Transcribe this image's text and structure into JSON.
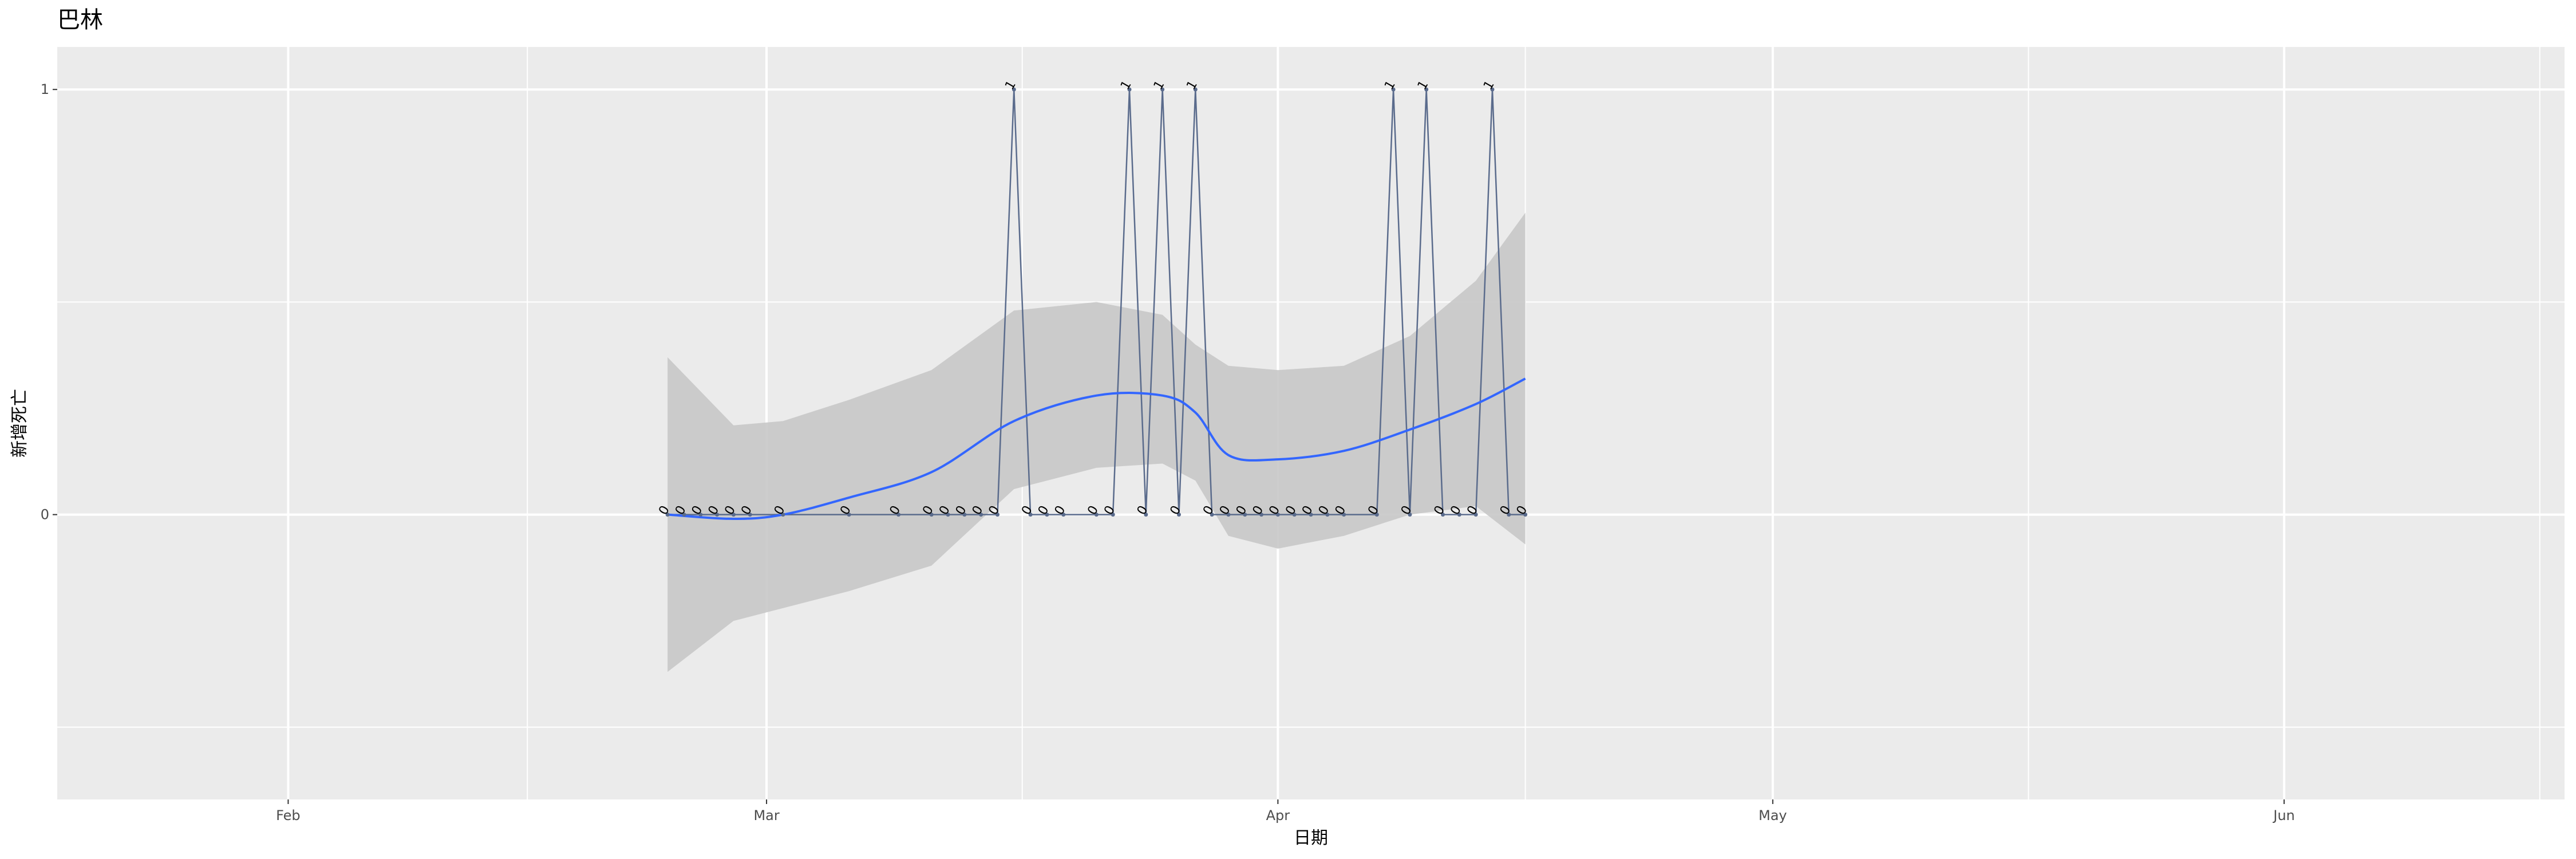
{
  "chart_data": {
    "type": "line",
    "title": "巴林",
    "xlabel": "日期",
    "ylabel": "新增死亡",
    "x_tick_labels": [
      {
        "label": "Feb",
        "date": "2020-02-01"
      },
      {
        "label": "Mar",
        "date": "2020-03-01"
      },
      {
        "label": "Apr",
        "date": "2020-04-01"
      },
      {
        "label": "May",
        "date": "2020-05-01"
      },
      {
        "label": "Jun",
        "date": "2020-06-01"
      }
    ],
    "y_ticks": [
      0,
      1
    ],
    "xlim": [
      "2020-01-18",
      "2020-06-18"
    ],
    "ylim": [
      -0.67,
      1.1
    ],
    "grid": true,
    "legend": "none",
    "colors": {
      "panel": "#ebebeb",
      "grid": "#ffffff",
      "line": "#5a6b8c",
      "smooth": "#3366ff",
      "ribbon": "#c8c8c8"
    },
    "series": [
      {
        "x": [
          "2020-02-24",
          "2020-02-25",
          "2020-02-26",
          "2020-02-27",
          "2020-02-28",
          "2020-02-29",
          "2020-03-02",
          "2020-03-06",
          "2020-03-09",
          "2020-03-11",
          "2020-03-12",
          "2020-03-13",
          "2020-03-14",
          "2020-03-15",
          "2020-03-16",
          "2020-03-17",
          "2020-03-18",
          "2020-03-19",
          "2020-03-21",
          "2020-03-22",
          "2020-03-23",
          "2020-03-24",
          "2020-03-25",
          "2020-03-26",
          "2020-03-27",
          "2020-03-28",
          "2020-03-29",
          "2020-03-30",
          "2020-03-31",
          "2020-04-01",
          "2020-04-02",
          "2020-04-03",
          "2020-04-04",
          "2020-04-05",
          "2020-04-07",
          "2020-04-08",
          "2020-04-09",
          "2020-04-10",
          "2020-04-11",
          "2020-04-12",
          "2020-04-13",
          "2020-04-14",
          "2020-04-15",
          "2020-04-16"
        ],
        "y": [
          0,
          0,
          0,
          0,
          0,
          0,
          0,
          0,
          0,
          0,
          0,
          0,
          0,
          0,
          1,
          0,
          0,
          0,
          0,
          0,
          1,
          0,
          1,
          0,
          1,
          0,
          0,
          0,
          0,
          0,
          0,
          0,
          0,
          0,
          0,
          1,
          0,
          1,
          0,
          0,
          0,
          1,
          0,
          0
        ]
      }
    ],
    "smooth": {
      "method": "loess",
      "x": [
        "2020-02-24",
        "2020-02-28",
        "2020-03-02",
        "2020-03-06",
        "2020-03-11",
        "2020-03-16",
        "2020-03-21",
        "2020-03-25",
        "2020-03-27",
        "2020-03-29",
        "2020-04-01",
        "2020-04-05",
        "2020-04-09",
        "2020-04-13",
        "2020-04-16"
      ],
      "y": [
        0.0,
        -0.01,
        0.0,
        0.04,
        0.1,
        0.22,
        0.28,
        0.28,
        0.24,
        0.14,
        0.13,
        0.15,
        0.2,
        0.26,
        0.32
      ],
      "ymin": [
        -0.37,
        -0.25,
        -0.22,
        -0.18,
        -0.12,
        0.06,
        0.11,
        0.12,
        0.08,
        -0.05,
        -0.08,
        -0.05,
        0.0,
        0.02,
        -0.07
      ],
      "ymax": [
        0.37,
        0.21,
        0.22,
        0.27,
        0.34,
        0.48,
        0.5,
        0.47,
        0.4,
        0.35,
        0.34,
        0.35,
        0.42,
        0.55,
        0.71
      ]
    }
  }
}
